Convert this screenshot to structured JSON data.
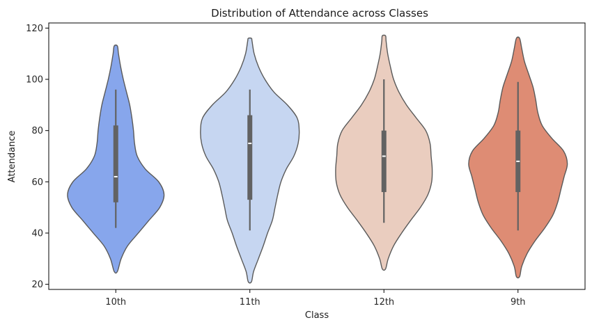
{
  "chart_data": {
    "type": "violin",
    "title": "Distribution of Attendance across Classes",
    "xlabel": "Class",
    "ylabel": "Attendance",
    "ylim": [
      18,
      122
    ],
    "yticks": [
      20,
      40,
      60,
      80,
      100,
      120
    ],
    "grid": false,
    "legend": "none",
    "categories": [
      "10th",
      "11th",
      "12th",
      "9th"
    ],
    "colors": [
      "#87a6ec",
      "#c6d6f1",
      "#eacdbf",
      "#de8c74"
    ],
    "outline_color": "#595959",
    "box_color": "#626262",
    "median_color": "#ffffff",
    "violins": [
      {
        "category": "10th",
        "whisker": [
          42,
          96
        ],
        "quartiles": [
          52,
          82
        ],
        "median": 62,
        "density": [
          [
            25,
            0.03
          ],
          [
            30,
            0.1
          ],
          [
            35,
            0.22
          ],
          [
            40,
            0.42
          ],
          [
            45,
            0.62
          ],
          [
            50,
            0.82
          ],
          [
            55,
            0.9
          ],
          [
            60,
            0.8
          ],
          [
            65,
            0.55
          ],
          [
            70,
            0.4
          ],
          [
            75,
            0.35
          ],
          [
            80,
            0.33
          ],
          [
            85,
            0.3
          ],
          [
            90,
            0.26
          ],
          [
            95,
            0.2
          ],
          [
            100,
            0.14
          ],
          [
            105,
            0.09
          ],
          [
            110,
            0.05
          ],
          [
            113,
            0.03
          ]
        ]
      },
      {
        "category": "11th",
        "whisker": [
          41,
          96
        ],
        "quartiles": [
          53,
          86
        ],
        "median": 75,
        "density": [
          [
            21,
            0.03
          ],
          [
            25,
            0.07
          ],
          [
            30,
            0.16
          ],
          [
            35,
            0.25
          ],
          [
            40,
            0.33
          ],
          [
            45,
            0.42
          ],
          [
            50,
            0.47
          ],
          [
            55,
            0.52
          ],
          [
            60,
            0.58
          ],
          [
            65,
            0.68
          ],
          [
            70,
            0.82
          ],
          [
            75,
            0.9
          ],
          [
            80,
            0.92
          ],
          [
            85,
            0.88
          ],
          [
            90,
            0.7
          ],
          [
            95,
            0.45
          ],
          [
            100,
            0.28
          ],
          [
            105,
            0.16
          ],
          [
            110,
            0.08
          ],
          [
            115,
            0.04
          ],
          [
            116,
            0.03
          ]
        ]
      },
      {
        "category": "12th",
        "whisker": [
          44,
          100
        ],
        "quartiles": [
          56,
          80
        ],
        "median": 70,
        "density": [
          [
            26,
            0.03
          ],
          [
            30,
            0.08
          ],
          [
            35,
            0.18
          ],
          [
            40,
            0.33
          ],
          [
            45,
            0.5
          ],
          [
            50,
            0.68
          ],
          [
            55,
            0.82
          ],
          [
            60,
            0.89
          ],
          [
            65,
            0.9
          ],
          [
            70,
            0.88
          ],
          [
            75,
            0.86
          ],
          [
            80,
            0.78
          ],
          [
            85,
            0.6
          ],
          [
            90,
            0.42
          ],
          [
            95,
            0.28
          ],
          [
            100,
            0.18
          ],
          [
            105,
            0.12
          ],
          [
            110,
            0.07
          ],
          [
            115,
            0.04
          ],
          [
            117,
            0.03
          ]
        ]
      },
      {
        "category": "9th",
        "whisker": [
          41,
          99
        ],
        "quartiles": [
          56,
          80
        ],
        "median": 68,
        "density": [
          [
            23,
            0.03
          ],
          [
            27,
            0.07
          ],
          [
            32,
            0.17
          ],
          [
            37,
            0.32
          ],
          [
            42,
            0.5
          ],
          [
            47,
            0.65
          ],
          [
            52,
            0.74
          ],
          [
            57,
            0.8
          ],
          [
            62,
            0.86
          ],
          [
            67,
            0.92
          ],
          [
            72,
            0.85
          ],
          [
            77,
            0.63
          ],
          [
            82,
            0.45
          ],
          [
            87,
            0.37
          ],
          [
            92,
            0.33
          ],
          [
            97,
            0.28
          ],
          [
            102,
            0.2
          ],
          [
            107,
            0.12
          ],
          [
            112,
            0.07
          ],
          [
            116,
            0.03
          ]
        ]
      }
    ]
  }
}
